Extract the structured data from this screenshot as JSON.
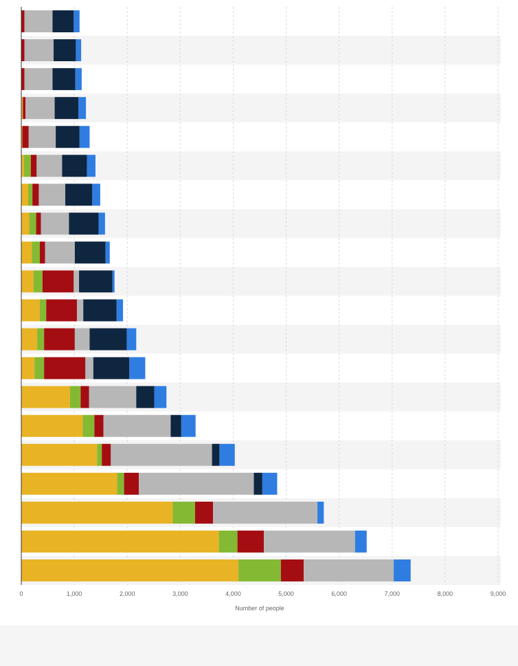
{
  "chart_data": {
    "type": "bar",
    "orientation": "horizontal",
    "stacked": true,
    "xlabel": "Number of people",
    "xlim": [
      0,
      9000
    ],
    "x_ticks": [
      0,
      1000,
      2000,
      3000,
      4000,
      5000,
      6000,
      7000,
      8000,
      9000
    ],
    "x_tick_labels": [
      "0",
      "1,000",
      "2,000",
      "3,000",
      "4,000",
      "5,000",
      "6,000",
      "7,000",
      "8,000",
      "9,000"
    ],
    "grid": true,
    "legend": "none",
    "category_count": 20,
    "colors": [
      "#e8b325",
      "#84b933",
      "#a40e13",
      "#b7b7b7",
      "#0f2640",
      "#2f7de1"
    ],
    "series": [
      {
        "values": [
          0,
          0,
          0,
          30,
          20,
          50,
          130,
          150,
          200,
          230,
          350,
          300,
          250,
          920,
          1160,
          1430,
          1810,
          2860,
          3730,
          4100
        ]
      },
      {
        "values": [
          0,
          0,
          0,
          0,
          0,
          130,
          80,
          130,
          150,
          170,
          120,
          130,
          180,
          200,
          220,
          90,
          130,
          420,
          350,
          800
        ]
      },
      {
        "values": [
          60,
          60,
          60,
          50,
          120,
          110,
          120,
          90,
          100,
          590,
          580,
          580,
          780,
          160,
          170,
          170,
          280,
          340,
          500,
          430
        ]
      },
      {
        "values": [
          530,
          550,
          530,
          550,
          510,
          480,
          500,
          530,
          560,
          100,
          120,
          280,
          150,
          890,
          1270,
          1910,
          2170,
          1970,
          1720,
          1700
        ]
      },
      {
        "values": [
          400,
          420,
          430,
          450,
          450,
          470,
          510,
          560,
          580,
          630,
          630,
          700,
          680,
          340,
          200,
          140,
          160,
          0,
          0,
          0
        ]
      },
      {
        "values": [
          110,
          100,
          120,
          140,
          190,
          160,
          150,
          120,
          80,
          40,
          120,
          180,
          300,
          230,
          270,
          290,
          280,
          120,
          220,
          320
        ]
      }
    ]
  }
}
